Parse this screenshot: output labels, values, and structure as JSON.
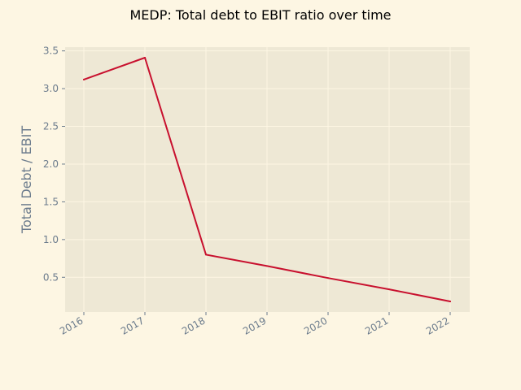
{
  "chart_data": {
    "type": "line",
    "title": "MEDP: Total debt to EBIT ratio over time",
    "xlabel": "",
    "ylabel": "Total Debt / EBIT",
    "x": [
      "2016",
      "2017",
      "2018",
      "2019",
      "2020",
      "2021",
      "2022"
    ],
    "series": [
      {
        "values": [
          3.12,
          3.41,
          0.8,
          0.65,
          0.49,
          0.34,
          0.18
        ],
        "color": "#c8102e"
      }
    ],
    "yticks": [
      0.5,
      1.0,
      1.5,
      2.0,
      2.5,
      3.0,
      3.5
    ],
    "ytick_labels": [
      "0.5",
      "1.0",
      "1.5",
      "2.0",
      "2.5",
      "3.0",
      "3.5"
    ],
    "ylim": [
      0.04,
      3.55
    ],
    "grid": true,
    "legend": "none",
    "colors": {
      "background": "#fdf6e3",
      "plot_background": "#eee8d5",
      "grid": "#fdf6e3",
      "text": "#6b7b8c"
    }
  }
}
